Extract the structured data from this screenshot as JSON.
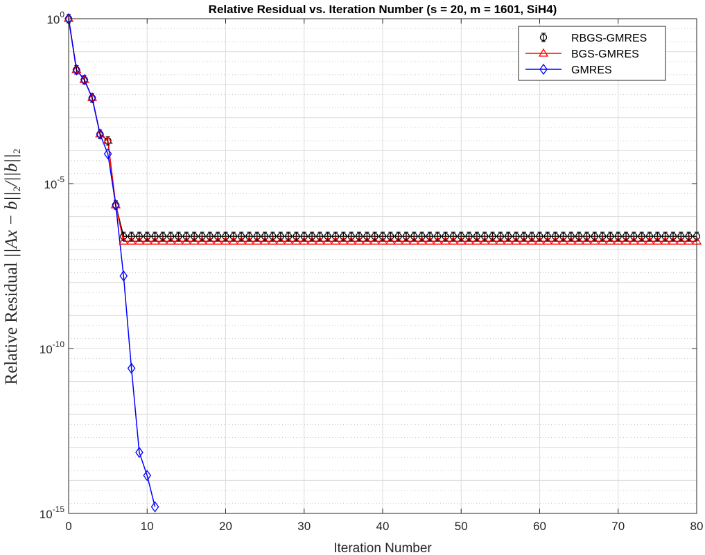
{
  "chart_data": {
    "type": "line",
    "title": "Relative Residual vs. Iteration Number (s = 20, m = 1601, SiH4)",
    "xlabel": "Iteration Number",
    "ylabel": "Relative Residual ||Ax − b||₂ / ||b||₂",
    "xlim": [
      0,
      80
    ],
    "ylim_log10": [
      -15,
      0
    ],
    "yscale": "log",
    "grid": true,
    "minor_grid": true,
    "legend_position": "top-right",
    "x_ticks": [
      0,
      10,
      20,
      30,
      40,
      50,
      60,
      70,
      80
    ],
    "y_ticks_exponents": [
      0,
      -5,
      -10,
      -15
    ],
    "series": [
      {
        "name": "RBGS-GMRES",
        "color": "#000000",
        "marker": "circle-with-errorbar",
        "x": [
          0,
          1,
          2,
          3,
          4,
          5,
          6,
          7,
          8,
          9,
          10,
          11,
          12,
          13,
          14,
          15,
          16,
          17,
          18,
          19,
          20,
          21,
          22,
          23,
          24,
          25,
          26,
          27,
          28,
          29,
          30,
          31,
          32,
          33,
          34,
          35,
          36,
          37,
          38,
          39,
          40,
          41,
          42,
          43,
          44,
          45,
          46,
          47,
          48,
          49,
          50,
          51,
          52,
          53,
          54,
          55,
          56,
          57,
          58,
          59,
          60,
          61,
          62,
          63,
          64,
          65,
          66,
          67,
          68,
          69,
          70,
          71,
          72,
          73,
          74,
          75,
          76,
          77,
          78,
          79,
          80
        ],
        "log10_y": [
          0,
          -1.55,
          -1.85,
          -2.4,
          -3.5,
          -3.7,
          -5.65,
          -6.6,
          -6.6,
          -6.6,
          -6.6,
          -6.6,
          -6.6,
          -6.6,
          -6.6,
          -6.6,
          -6.6,
          -6.6,
          -6.6,
          -6.6,
          -6.6,
          -6.6,
          -6.6,
          -6.6,
          -6.6,
          -6.6,
          -6.6,
          -6.6,
          -6.6,
          -6.6,
          -6.6,
          -6.6,
          -6.6,
          -6.6,
          -6.6,
          -6.6,
          -6.6,
          -6.6,
          -6.6,
          -6.6,
          -6.6,
          -6.6,
          -6.6,
          -6.6,
          -6.6,
          -6.6,
          -6.6,
          -6.6,
          -6.6,
          -6.6,
          -6.6,
          -6.6,
          -6.6,
          -6.6,
          -6.6,
          -6.6,
          -6.6,
          -6.6,
          -6.6,
          -6.6,
          -6.6,
          -6.6,
          -6.6,
          -6.6,
          -6.6,
          -6.6,
          -6.6,
          -6.6,
          -6.6,
          -6.6,
          -6.6,
          -6.6,
          -6.6,
          -6.6,
          -6.6,
          -6.6,
          -6.6,
          -6.6,
          -6.6,
          -6.6,
          -6.6
        ]
      },
      {
        "name": "BGS-GMRES",
        "color": "#ff0000",
        "marker": "triangle",
        "x": [
          0,
          1,
          2,
          3,
          4,
          5,
          6,
          7,
          80
        ],
        "log10_y": [
          0,
          -1.55,
          -1.85,
          -2.4,
          -3.5,
          -3.7,
          -5.65,
          -6.75,
          -6.75
        ]
      },
      {
        "name": "GMRES",
        "color": "#0000ff",
        "marker": "diamond",
        "x": [
          0,
          1,
          2,
          3,
          4,
          5,
          6,
          7,
          8,
          9,
          10,
          11
        ],
        "log10_y": [
          0,
          -1.55,
          -1.85,
          -2.4,
          -3.5,
          -4.1,
          -5.65,
          -7.8,
          -10.6,
          -13.15,
          -13.85,
          -14.8
        ]
      }
    ]
  }
}
